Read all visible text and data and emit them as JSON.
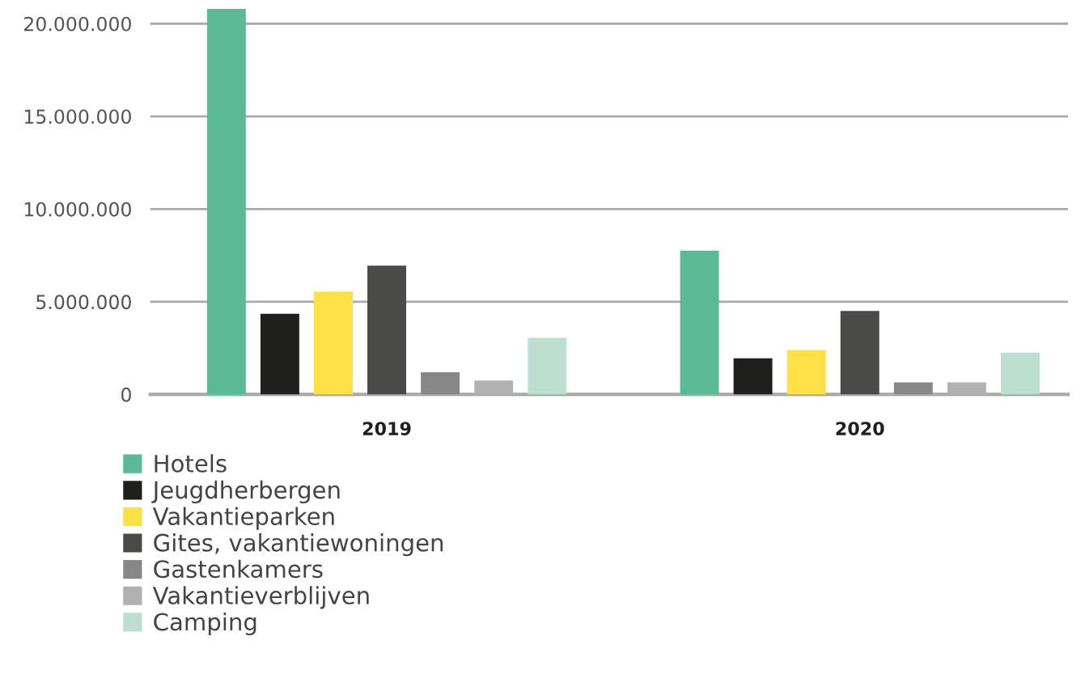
{
  "chart_data": {
    "type": "bar",
    "categories": [
      "2019",
      "2020"
    ],
    "series": [
      {
        "name": "Hotels",
        "color": "#5bb996",
        "values": [
          20800000,
          7750000
        ]
      },
      {
        "name": "Jeugdherbergen",
        "color": "#1f1f1e",
        "values": [
          4350000,
          1950000
        ]
      },
      {
        "name": "Vakantieparken",
        "color": "#ffe046",
        "values": [
          5550000,
          2400000
        ]
      },
      {
        "name": "Gites, vakantiewoningen",
        "color": "#4a4a49",
        "values": [
          6950000,
          4500000
        ]
      },
      {
        "name": "Gastenkamers",
        "color": "#878787",
        "values": [
          1200000,
          650000
        ]
      },
      {
        "name": "Vakantieverblijven",
        "color": "#b1b1b1",
        "values": [
          750000,
          650000
        ]
      },
      {
        "name": "Camping",
        "color": "#bcdfcf",
        "values": [
          3050000,
          2250000
        ]
      }
    ],
    "ylim": [
      0,
      21000000
    ],
    "yticks": [
      0,
      {
        "value": 5000000,
        "label": "5.000.000"
      },
      {
        "value": 10000000,
        "label": "10.000.000"
      },
      {
        "value": 15000000,
        "label": "15.000.000"
      },
      {
        "value": 20000000,
        "label": "20.000.000"
      }
    ],
    "grid": "y",
    "legend": "bottom"
  }
}
